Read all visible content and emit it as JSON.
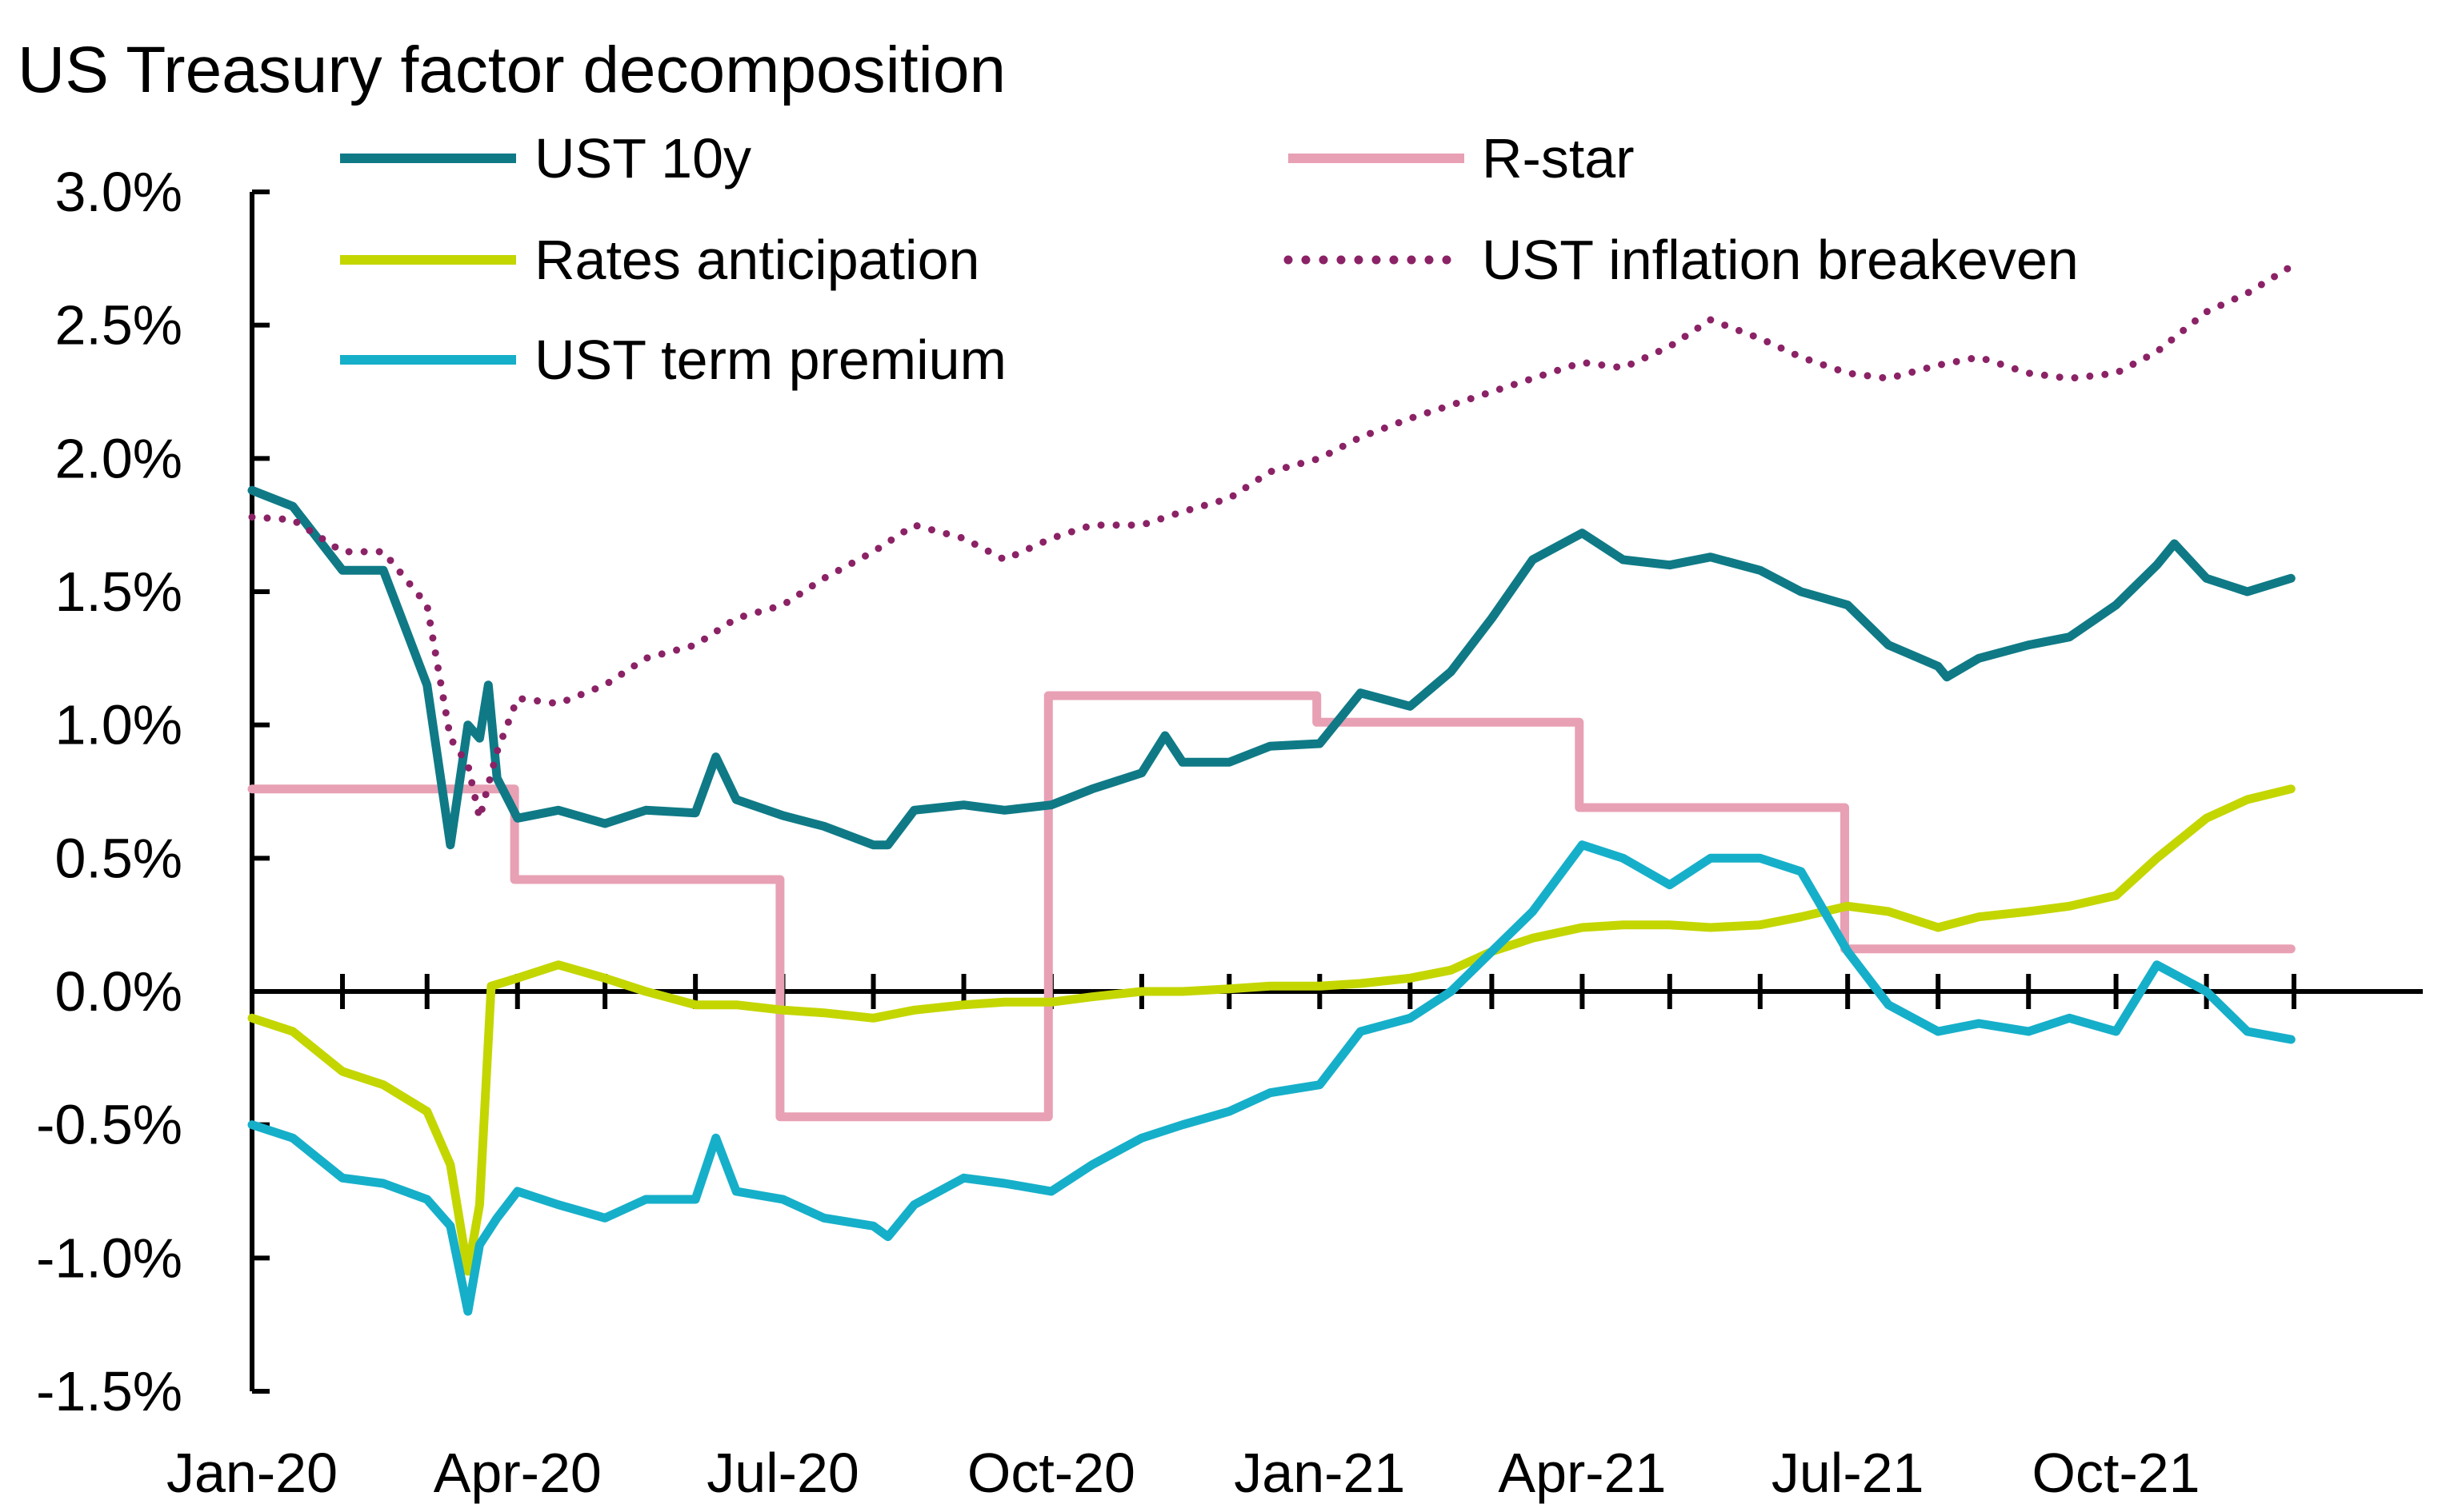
{
  "chart_data": {
    "type": "line",
    "title": "US Treasury factor decomposition",
    "xlabel": "",
    "ylabel": "",
    "x_tick_labels": [
      "Jan-20",
      "Apr-20",
      "Jul-20",
      "Oct-20",
      "Jan-21",
      "Apr-21",
      "Jul-21",
      "Oct-21"
    ],
    "y_tick_labels": [
      "3.0%",
      "2.5%",
      "2.0%",
      "1.5%",
      "1.0%",
      "0.5%",
      "0.0%",
      "-0.5%",
      "-1.0%",
      "-1.5%"
    ],
    "xlim": [
      "2020-01-01",
      "2022-01-01"
    ],
    "ylim": [
      -1.5,
      3.0
    ],
    "y_unit": "%",
    "grid": false,
    "legend": "top, two columns",
    "series": [
      {
        "name": "UST 10y",
        "color": "#0F7A86",
        "style": "solid",
        "x": [
          "2020-01-01",
          "2020-01-15",
          "2020-02-01",
          "2020-02-15",
          "2020-03-01",
          "2020-03-09",
          "2020-03-15",
          "2020-03-19",
          "2020-03-22",
          "2020-03-25",
          "2020-04-01",
          "2020-04-15",
          "2020-05-01",
          "2020-05-15",
          "2020-06-01",
          "2020-06-08",
          "2020-06-15",
          "2020-07-01",
          "2020-07-15",
          "2020-08-01",
          "2020-08-06",
          "2020-08-15",
          "2020-09-01",
          "2020-09-15",
          "2020-10-01",
          "2020-10-15",
          "2020-11-01",
          "2020-11-09",
          "2020-11-15",
          "2020-12-01",
          "2020-12-15",
          "2021-01-01",
          "2021-01-15",
          "2021-02-01",
          "2021-02-15",
          "2021-03-01",
          "2021-03-15",
          "2021-04-01",
          "2021-04-15",
          "2021-05-01",
          "2021-05-15",
          "2021-06-01",
          "2021-06-15",
          "2021-07-01",
          "2021-07-15",
          "2021-08-01",
          "2021-08-04",
          "2021-08-15",
          "2021-09-01",
          "2021-09-15",
          "2021-10-01",
          "2021-10-15",
          "2021-10-21",
          "2021-11-01",
          "2021-11-15",
          "2021-11-30"
        ],
        "values": [
          1.88,
          1.82,
          1.58,
          1.58,
          1.15,
          0.55,
          1.0,
          0.95,
          1.15,
          0.8,
          0.65,
          0.68,
          0.63,
          0.68,
          0.67,
          0.88,
          0.72,
          0.66,
          0.62,
          0.55,
          0.55,
          0.68,
          0.7,
          0.68,
          0.7,
          0.76,
          0.82,
          0.96,
          0.86,
          0.86,
          0.92,
          0.93,
          1.12,
          1.07,
          1.2,
          1.4,
          1.62,
          1.72,
          1.62,
          1.6,
          1.63,
          1.58,
          1.5,
          1.45,
          1.3,
          1.22,
          1.18,
          1.25,
          1.3,
          1.33,
          1.45,
          1.6,
          1.68,
          1.55,
          1.5,
          1.55
        ]
      },
      {
        "name": "R-star",
        "color": "#E8A0B4",
        "style": "solid",
        "x": [
          "2020-01-01",
          "2020-03-31",
          "2020-03-31",
          "2020-06-30",
          "2020-06-30",
          "2020-09-30",
          "2020-09-30",
          "2020-12-31",
          "2020-12-31",
          "2021-03-31",
          "2021-03-31",
          "2021-06-30",
          "2021-06-30",
          "2021-11-30"
        ],
        "values": [
          0.76,
          0.76,
          0.42,
          0.42,
          -0.47,
          -0.47,
          1.11,
          1.11,
          1.01,
          1.01,
          0.69,
          0.69,
          0.16,
          0.16
        ]
      },
      {
        "name": "Rates anticipation",
        "color": "#C4D600",
        "style": "solid",
        "x": [
          "2020-01-01",
          "2020-01-15",
          "2020-02-01",
          "2020-02-15",
          "2020-03-01",
          "2020-03-09",
          "2020-03-15",
          "2020-03-19",
          "2020-03-23",
          "2020-04-01",
          "2020-04-15",
          "2020-05-01",
          "2020-05-15",
          "2020-06-01",
          "2020-06-15",
          "2020-07-01",
          "2020-07-15",
          "2020-08-01",
          "2020-08-15",
          "2020-09-01",
          "2020-09-15",
          "2020-10-01",
          "2020-10-15",
          "2020-11-01",
          "2020-11-15",
          "2020-12-01",
          "2020-12-15",
          "2021-01-01",
          "2021-01-15",
          "2021-02-01",
          "2021-02-15",
          "2021-03-01",
          "2021-03-15",
          "2021-04-01",
          "2021-04-15",
          "2021-05-01",
          "2021-05-15",
          "2021-06-01",
          "2021-06-15",
          "2021-07-01",
          "2021-07-15",
          "2021-08-01",
          "2021-08-15",
          "2021-09-01",
          "2021-09-15",
          "2021-10-01",
          "2021-10-15",
          "2021-11-01",
          "2021-11-15",
          "2021-11-30"
        ],
        "values": [
          -0.1,
          -0.15,
          -0.3,
          -0.35,
          -0.45,
          -0.65,
          -1.05,
          -0.8,
          0.02,
          0.05,
          0.1,
          0.05,
          0.0,
          -0.05,
          -0.05,
          -0.07,
          -0.08,
          -0.1,
          -0.07,
          -0.05,
          -0.04,
          -0.04,
          -0.02,
          0.0,
          0.0,
          0.01,
          0.02,
          0.02,
          0.03,
          0.05,
          0.08,
          0.15,
          0.2,
          0.24,
          0.25,
          0.25,
          0.24,
          0.25,
          0.28,
          0.32,
          0.3,
          0.24,
          0.28,
          0.3,
          0.32,
          0.36,
          0.5,
          0.65,
          0.72,
          0.76
        ]
      },
      {
        "name": "UST inflation breakeven",
        "color": "#8B2266",
        "style": "dotted",
        "x": [
          "2020-01-01",
          "2020-01-15",
          "2020-02-01",
          "2020-02-15",
          "2020-03-01",
          "2020-03-09",
          "2020-03-15",
          "2020-03-19",
          "2020-03-25",
          "2020-04-01",
          "2020-04-15",
          "2020-05-01",
          "2020-05-15",
          "2020-06-01",
          "2020-06-15",
          "2020-07-01",
          "2020-07-15",
          "2020-08-01",
          "2020-08-15",
          "2020-09-01",
          "2020-09-15",
          "2020-10-01",
          "2020-10-15",
          "2020-11-01",
          "2020-11-15",
          "2020-12-01",
          "2020-12-15",
          "2021-01-01",
          "2021-01-15",
          "2021-02-01",
          "2021-02-15",
          "2021-03-01",
          "2021-03-15",
          "2021-04-01",
          "2021-04-15",
          "2021-05-01",
          "2021-05-15",
          "2021-06-01",
          "2021-06-15",
          "2021-07-01",
          "2021-07-15",
          "2021-08-01",
          "2021-08-15",
          "2021-09-01",
          "2021-09-15",
          "2021-10-01",
          "2021-10-15",
          "2021-11-01",
          "2021-11-15",
          "2021-11-30"
        ],
        "values": [
          1.78,
          1.77,
          1.65,
          1.65,
          1.45,
          0.95,
          0.85,
          0.65,
          0.9,
          1.1,
          1.08,
          1.15,
          1.25,
          1.3,
          1.4,
          1.45,
          1.55,
          1.65,
          1.75,
          1.7,
          1.62,
          1.7,
          1.75,
          1.75,
          1.8,
          1.85,
          1.95,
          2.0,
          2.08,
          2.15,
          2.2,
          2.25,
          2.3,
          2.36,
          2.34,
          2.42,
          2.52,
          2.45,
          2.38,
          2.32,
          2.3,
          2.35,
          2.38,
          2.32,
          2.3,
          2.32,
          2.4,
          2.55,
          2.62,
          2.72
        ]
      },
      {
        "name": "UST term premium",
        "color": "#16AFC9",
        "style": "solid",
        "x": [
          "2020-01-01",
          "2020-01-15",
          "2020-02-01",
          "2020-02-15",
          "2020-03-01",
          "2020-03-09",
          "2020-03-15",
          "2020-03-19",
          "2020-03-25",
          "2020-04-01",
          "2020-04-15",
          "2020-05-01",
          "2020-05-15",
          "2020-06-01",
          "2020-06-08",
          "2020-06-15",
          "2020-07-01",
          "2020-07-15",
          "2020-08-01",
          "2020-08-06",
          "2020-08-15",
          "2020-09-01",
          "2020-09-15",
          "2020-10-01",
          "2020-10-15",
          "2020-11-01",
          "2020-11-15",
          "2020-12-01",
          "2020-12-15",
          "2021-01-01",
          "2021-01-15",
          "2021-02-01",
          "2021-02-15",
          "2021-03-01",
          "2021-03-15",
          "2021-04-01",
          "2021-04-15",
          "2021-05-01",
          "2021-05-15",
          "2021-06-01",
          "2021-06-15",
          "2021-07-01",
          "2021-07-15",
          "2021-08-01",
          "2021-08-15",
          "2021-09-01",
          "2021-09-15",
          "2021-10-01",
          "2021-10-15",
          "2021-11-01",
          "2021-11-15",
          "2021-11-30"
        ],
        "values": [
          -0.5,
          -0.55,
          -0.7,
          -0.72,
          -0.78,
          -0.88,
          -1.2,
          -0.95,
          -0.85,
          -0.75,
          -0.8,
          -0.85,
          -0.78,
          -0.78,
          -0.55,
          -0.75,
          -0.78,
          -0.85,
          -0.88,
          -0.92,
          -0.8,
          -0.7,
          -0.72,
          -0.75,
          -0.65,
          -0.55,
          -0.5,
          -0.45,
          -0.38,
          -0.35,
          -0.15,
          -0.1,
          0.0,
          0.15,
          0.3,
          0.55,
          0.5,
          0.4,
          0.5,
          0.5,
          0.45,
          0.15,
          -0.05,
          -0.15,
          -0.12,
          -0.15,
          -0.1,
          -0.15,
          0.1,
          0.0,
          -0.15,
          -0.18
        ]
      }
    ]
  }
}
